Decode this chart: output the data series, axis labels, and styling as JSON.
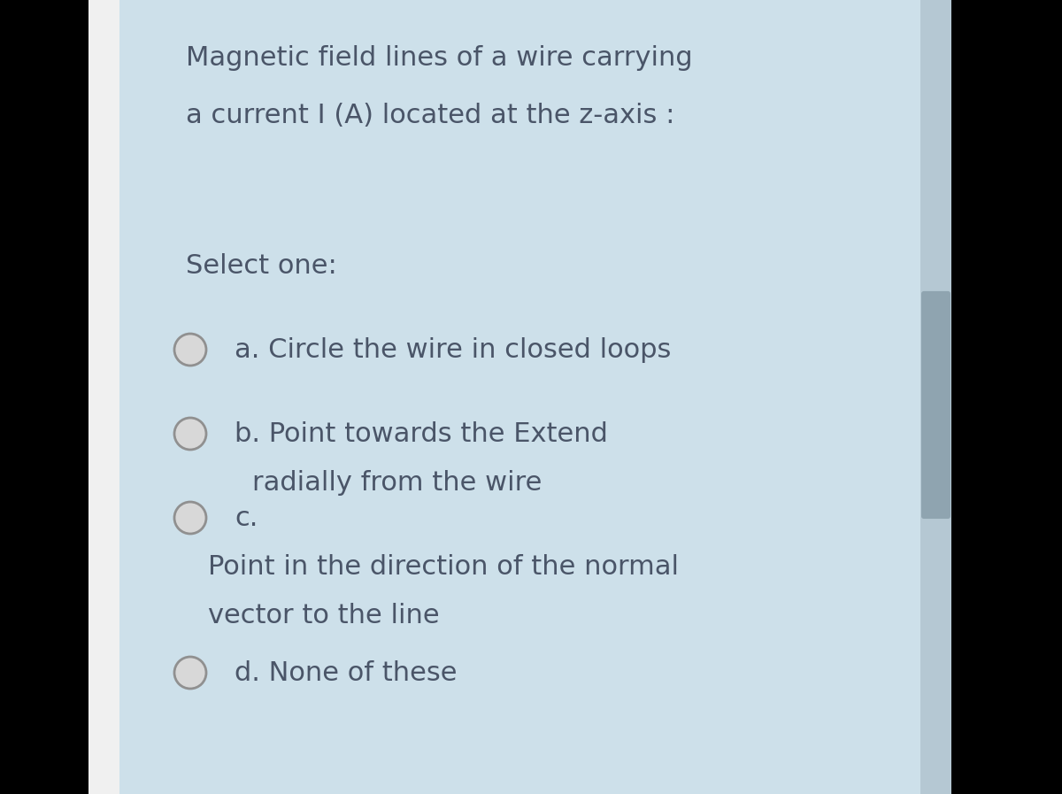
{
  "background_color": "#000000",
  "left_border_color": "#ffffff",
  "card_color": "#cde0ea",
  "title_lines": [
    "Magnetic field lines of a wire carrying",
    "a current I (A) located at the z-axis :"
  ],
  "title_fontsize": 22,
  "title_color": "#4a5568",
  "select_one_text": "Select one:",
  "select_one_fontsize": 22,
  "select_one_color": "#4a5568",
  "options": [
    {
      "lines": [
        "a. Circle the wire in closed loops"
      ],
      "n_lines": 1
    },
    {
      "lines": [
        "b. Point towards the Extend",
        "radially from the wire"
      ],
      "n_lines": 2
    },
    {
      "lines": [
        "c.",
        "Point in the direction of the normal",
        "vector to the line"
      ],
      "n_lines": 3
    },
    {
      "lines": [
        "d. None of these"
      ],
      "n_lines": 1
    }
  ],
  "option_fontsize": 22,
  "option_color": "#4a5568",
  "scrollbar_color": "#8fa4b0",
  "scrollbar_bg_color": "#b5c8d3"
}
